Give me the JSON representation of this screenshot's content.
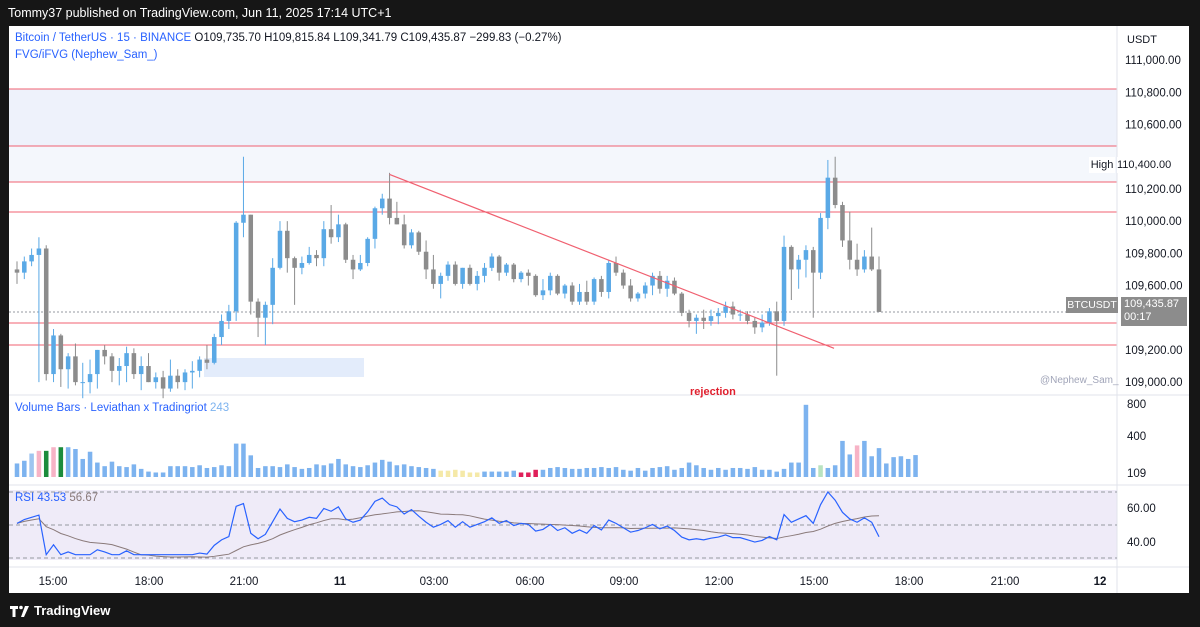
{
  "header": {
    "publisher_text": "Tommy37 published on TradingView.com, Jun 11, 2025 17:14 UTC+1"
  },
  "symbol": {
    "name": "Bitcoin / TetherUS · 15 · BINANCE",
    "open_label": "O",
    "open": "109,735.70",
    "high_label": "H",
    "high": "109,815.84",
    "low_label": "L",
    "low": "109,341.79",
    "close_label": "C",
    "close": "109,435.87",
    "change": "−299.83 (−0.27%)"
  },
  "indicator_fvg": "FVG/iFVG (Nephew_Sam_)",
  "currency_button": "USDT",
  "price_axis": [
    "111,000.00",
    "110,800.00",
    "110,600.00",
    "110,200.00",
    "110,000.00",
    "109,800.00",
    "109,600.00",
    "109,200.00",
    "109,000.00"
  ],
  "high_marker": {
    "label": "High",
    "value": "110,400.00"
  },
  "last_price": {
    "symbol": "BTCUSDT",
    "value": "109,435.87",
    "countdown": "00:17"
  },
  "watermark": "@Nephew_Sam_",
  "annotation": "rejection",
  "volume": {
    "title": "Volume Bars · Leviathan x Tradingriot",
    "value": "243",
    "axis": [
      "800",
      "400",
      "109"
    ]
  },
  "rsi": {
    "title": "RSI",
    "value1": "43.53",
    "value2": "56.67",
    "axis": [
      "60.00",
      "40.00"
    ]
  },
  "time_axis": [
    "15:00",
    "18:00",
    "21:00",
    "11",
    "03:00",
    "06:00",
    "09:00",
    "12:00",
    "15:00",
    "18:00",
    "21:00",
    "12"
  ],
  "footer": {
    "brand": "TradingView"
  },
  "colors": {
    "up": "#5aa9e6",
    "down": "#8c8c8c",
    "line_red": "#f23645",
    "rsi": "#2962ff",
    "ma": "#8a7a7a"
  },
  "chart_data": {
    "type": "candlestick",
    "ylim": [
      108920,
      111150
    ],
    "candles": [
      [
        109700,
        109750,
        109610,
        109680
      ],
      [
        109680,
        109780,
        109640,
        109750
      ],
      [
        109750,
        109830,
        109720,
        109790
      ],
      [
        109790,
        109900,
        109000,
        109830
      ],
      [
        109830,
        109850,
        109010,
        109050
      ],
      [
        109050,
        109330,
        109000,
        109290
      ],
      [
        109290,
        109300,
        108970,
        109080
      ],
      [
        109080,
        109180,
        108960,
        109160
      ],
      [
        109160,
        109240,
        108980,
        109000
      ],
      [
        109000,
        109120,
        108900,
        109000
      ],
      [
        109000,
        109140,
        108930,
        109050
      ],
      [
        109050,
        109200,
        108960,
        109200
      ],
      [
        109200,
        109230,
        109110,
        109160
      ],
      [
        109160,
        109180,
        109000,
        109070
      ],
      [
        109070,
        109150,
        108980,
        109100
      ],
      [
        109100,
        109220,
        109000,
        109180
      ],
      [
        109180,
        109210,
        109020,
        109050
      ],
      [
        109050,
        109160,
        108950,
        109100
      ],
      [
        109100,
        109180,
        109000,
        109000
      ],
      [
        109000,
        109060,
        108960,
        109030
      ],
      [
        109030,
        109070,
        108900,
        108960
      ],
      [
        108960,
        109140,
        108940,
        109040
      ],
      [
        109040,
        109080,
        108960,
        109000
      ],
      [
        109000,
        109080,
        108950,
        109060
      ],
      [
        109060,
        109130,
        108960,
        109070
      ],
      [
        109070,
        109160,
        109030,
        109140
      ],
      [
        109140,
        109230,
        109080,
        109120
      ],
      [
        109120,
        109300,
        109110,
        109280
      ],
      [
        109280,
        109420,
        109230,
        109380
      ],
      [
        109380,
        109480,
        109330,
        109440
      ],
      [
        109440,
        110000,
        109380,
        109990
      ],
      [
        109990,
        110400,
        109900,
        110040
      ],
      [
        110040,
        110040,
        109420,
        109500
      ],
      [
        109500,
        109520,
        109280,
        109400
      ],
      [
        109400,
        109500,
        109230,
        109480
      ],
      [
        109480,
        109770,
        109360,
        109710
      ],
      [
        109710,
        110000,
        109700,
        109940
      ],
      [
        109940,
        110000,
        109680,
        109770
      ],
      [
        109770,
        109780,
        109480,
        109710
      ],
      [
        109710,
        109780,
        109670,
        109740
      ],
      [
        109740,
        109840,
        109730,
        109790
      ],
      [
        109790,
        109820,
        109720,
        109770
      ],
      [
        109770,
        110000,
        109720,
        109950
      ],
      [
        109950,
        110100,
        109860,
        109900
      ],
      [
        109900,
        110040,
        109870,
        109980
      ],
      [
        109980,
        109990,
        109740,
        109760
      ],
      [
        109760,
        109790,
        109640,
        109700
      ],
      [
        109700,
        109790,
        109690,
        109740
      ],
      [
        109740,
        109900,
        109720,
        109890
      ],
      [
        109890,
        110090,
        109830,
        110080
      ],
      [
        110080,
        110170,
        110040,
        110140
      ],
      [
        110140,
        110300,
        109980,
        110020
      ],
      [
        110020,
        110120,
        109980,
        109980
      ],
      [
        109980,
        110040,
        109830,
        109850
      ],
      [
        109850,
        109950,
        109830,
        109930
      ],
      [
        109930,
        109940,
        109790,
        109810
      ],
      [
        109810,
        109880,
        109640,
        109700
      ],
      [
        109700,
        109790,
        109580,
        109610
      ],
      [
        109610,
        109680,
        109520,
        109660
      ],
      [
        109660,
        109750,
        109630,
        109730
      ],
      [
        109730,
        109750,
        109600,
        109610
      ],
      [
        109610,
        109710,
        109580,
        109710
      ],
      [
        109710,
        109730,
        109600,
        109610
      ],
      [
        109610,
        109690,
        109570,
        109660
      ],
      [
        109660,
        109740,
        109620,
        109710
      ],
      [
        109710,
        109800,
        109690,
        109780
      ],
      [
        109780,
        109790,
        109630,
        109680
      ],
      [
        109680,
        109740,
        109660,
        109730
      ],
      [
        109730,
        109740,
        109620,
        109640
      ],
      [
        109640,
        109690,
        109620,
        109680
      ],
      [
        109680,
        109700,
        109600,
        109660
      ],
      [
        109660,
        109670,
        109530,
        109540
      ],
      [
        109540,
        109640,
        109510,
        109570
      ],
      [
        109570,
        109680,
        109540,
        109660
      ],
      [
        109660,
        109670,
        109540,
        109550
      ],
      [
        109550,
        109610,
        109520,
        109600
      ],
      [
        109600,
        109620,
        109480,
        109500
      ],
      [
        109500,
        109610,
        109480,
        109560
      ],
      [
        109560,
        109630,
        109480,
        109500
      ],
      [
        109500,
        109650,
        109480,
        109640
      ],
      [
        109640,
        109660,
        109530,
        109560
      ],
      [
        109560,
        109760,
        109520,
        109740
      ],
      [
        109740,
        109780,
        109660,
        109680
      ],
      [
        109680,
        109700,
        109580,
        109600
      ],
      [
        109600,
        109640,
        109500,
        109520
      ],
      [
        109520,
        109560,
        109500,
        109550
      ],
      [
        109550,
        109620,
        109520,
        109600
      ],
      [
        109600,
        109680,
        109540,
        109660
      ],
      [
        109660,
        109690,
        109550,
        109580
      ],
      [
        109580,
        109660,
        109530,
        109630
      ],
      [
        109630,
        109650,
        109540,
        109550
      ],
      [
        109550,
        109560,
        109410,
        109430
      ],
      [
        109430,
        109450,
        109340,
        109380
      ],
      [
        109380,
        109420,
        109300,
        109400
      ],
      [
        109400,
        109450,
        109330,
        109380
      ],
      [
        109380,
        109450,
        109350,
        109410
      ],
      [
        109410,
        109460,
        109360,
        109430
      ],
      [
        109430,
        109500,
        109400,
        109470
      ],
      [
        109470,
        109500,
        109390,
        109420
      ],
      [
        109420,
        109450,
        109380,
        109420
      ],
      [
        109420,
        109440,
        109360,
        109380
      ],
      [
        109380,
        109400,
        109300,
        109340
      ],
      [
        109340,
        109420,
        109310,
        109370
      ],
      [
        109370,
        109460,
        109350,
        109440
      ],
      [
        109440,
        109500,
        109040,
        109380
      ],
      [
        109380,
        109910,
        109350,
        109840
      ],
      [
        109840,
        109850,
        109510,
        109700
      ],
      [
        109700,
        109790,
        109580,
        109760
      ],
      [
        109760,
        109850,
        109650,
        109820
      ],
      [
        109820,
        109840,
        109400,
        109680
      ],
      [
        109680,
        110050,
        109640,
        110020
      ],
      [
        110020,
        110380,
        109950,
        110270
      ],
      [
        110270,
        110400,
        110080,
        110100
      ],
      [
        110100,
        110120,
        109840,
        109880
      ],
      [
        109880,
        110060,
        109700,
        109760
      ],
      [
        109760,
        109860,
        109660,
        109700
      ],
      [
        109700,
        109820,
        109680,
        109780
      ],
      [
        109780,
        109960,
        109690,
        109700
      ],
      [
        109700,
        109780,
        109440,
        109436
      ]
    ],
    "volume": [
      150,
      180,
      260,
      290,
      290,
      330,
      330,
      330,
      310,
      200,
      280,
      160,
      120,
      170,
      120,
      110,
      140,
      90,
      60,
      50,
      50,
      120,
      120,
      120,
      110,
      130,
      100,
      110,
      130,
      120,
      370,
      370,
      240,
      100,
      120,
      120,
      110,
      140,
      110,
      90,
      100,
      140,
      130,
      150,
      200,
      140,
      120,
      110,
      130,
      160,
      190,
      170,
      130,
      140,
      120,
      110,
      100,
      90,
      70,
      70,
      80,
      70,
      50,
      50,
      60,
      60,
      60,
      60,
      70,
      50,
      50,
      80,
      80,
      100,
      110,
      100,
      90,
      90,
      100,
      100,
      110,
      100,
      110,
      80,
      70,
      100,
      70,
      100,
      110,
      120,
      80,
      100,
      160,
      130,
      100,
      80,
      100,
      80,
      100,
      100,
      90,
      110,
      80,
      80,
      60,
      90,
      160,
      160,
      800,
      100,
      130,
      100,
      130,
      400,
      250,
      350,
      400,
      230,
      320,
      150,
      220,
      230,
      200,
      243
    ],
    "volume_colors": [
      "#7db3ef",
      "#7db3ef",
      "#7db3ef",
      "#9ec5f0",
      "#7db3ef",
      "#f7b3c6",
      "#7db3ef",
      "#1c8c3c",
      "#7db3ef",
      "#7db3ef"
    ]
  }
}
